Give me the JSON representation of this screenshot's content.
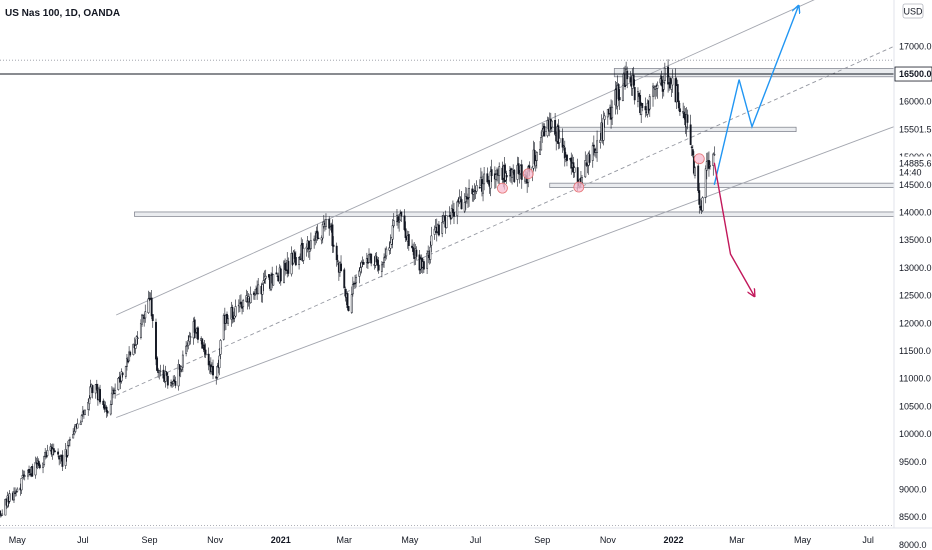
{
  "chart_data": {
    "type": "candlestick",
    "title": "US Nas 100, 1D, OANDA",
    "currency": "USD",
    "y_range": [
      7800,
      17800
    ],
    "y_ticks": [
      "8000.0",
      "8500.0",
      "9000.0",
      "9500.0",
      "10000.0",
      "10500.0",
      "11000.0",
      "11500.0",
      "12000.0",
      "12500.0",
      "13000.0",
      "13500.0",
      "14000.0",
      "14500.0",
      "15000.0",
      "16000.0",
      "17000.0"
    ],
    "x_ticks": [
      {
        "label": "May",
        "date": "2020-05-01",
        "bold": false
      },
      {
        "label": "Jul",
        "date": "2020-07-01",
        "bold": false
      },
      {
        "label": "Sep",
        "date": "2020-09-01",
        "bold": false
      },
      {
        "label": "Nov",
        "date": "2020-11-01",
        "bold": false
      },
      {
        "label": "2021",
        "date": "2021-01-01",
        "bold": true
      },
      {
        "label": "Mar",
        "date": "2021-03-01",
        "bold": false
      },
      {
        "label": "May",
        "date": "2021-05-01",
        "bold": false
      },
      {
        "label": "Jul",
        "date": "2021-07-01",
        "bold": false
      },
      {
        "label": "Sep",
        "date": "2021-09-01",
        "bold": false
      },
      {
        "label": "Nov",
        "date": "2021-11-01",
        "bold": false
      },
      {
        "label": "2022",
        "date": "2022-01-01",
        "bold": true
      },
      {
        "label": "Mar",
        "date": "2022-03-01",
        "bold": false
      },
      {
        "label": "May",
        "date": "2022-05-01",
        "bold": false
      },
      {
        "label": "Jul",
        "date": "2022-07-01",
        "bold": false
      }
    ],
    "date_range": [
      "2020-04-15",
      "2022-07-25"
    ],
    "price_path": [
      [
        "2020-04-15",
        8600
      ],
      [
        "2020-05-10",
        9250
      ],
      [
        "2020-06-05",
        9750
      ],
      [
        "2020-06-12",
        9500
      ],
      [
        "2020-07-10",
        10850
      ],
      [
        "2020-07-24",
        10500
      ],
      [
        "2020-08-10",
        11300
      ],
      [
        "2020-09-02",
        12400
      ],
      [
        "2020-09-08",
        11200
      ],
      [
        "2020-09-24",
        10900
      ],
      [
        "2020-10-12",
        12000
      ],
      [
        "2020-11-02",
        11000
      ],
      [
        "2020-11-09",
        12000
      ],
      [
        "2020-12-01",
        12500
      ],
      [
        "2020-12-31",
        12900
      ],
      [
        "2021-02-15",
        13800
      ],
      [
        "2021-03-05",
        12300
      ],
      [
        "2021-03-18",
        13200
      ],
      [
        "2021-04-06",
        13000
      ],
      [
        "2021-04-20",
        14000
      ],
      [
        "2021-05-12",
        13000
      ],
      [
        "2021-05-27",
        13700
      ],
      [
        "2021-06-25",
        14300
      ],
      [
        "2021-07-19",
        14700
      ],
      [
        "2021-08-18",
        14700
      ],
      [
        "2021-09-07",
        15650
      ],
      [
        "2021-09-20",
        15200
      ],
      [
        "2021-10-04",
        14500
      ],
      [
        "2021-10-25",
        15400
      ],
      [
        "2021-11-19",
        16550
      ],
      [
        "2021-12-03",
        15800
      ],
      [
        "2021-12-27",
        16500
      ],
      [
        "2022-01-12",
        15700
      ],
      [
        "2022-01-27",
        14000
      ],
      [
        "2022-02-02",
        14950
      ],
      [
        "2022-02-08",
        14885.6
      ]
    ],
    "channel": {
      "upper": {
        "from": [
          "2020-08-01",
          12150
        ],
        "to": [
          "2022-05-30",
          18000
        ]
      },
      "middle": {
        "from": [
          "2020-08-01",
          10700
        ],
        "to": [
          "2022-07-25",
          17000
        ]
      },
      "lower": {
        "from": [
          "2020-08-01",
          10300
        ],
        "to": [
          "2022-07-25",
          15550
        ]
      }
    },
    "horizontal_levels": [
      {
        "value": 16500,
        "label": "16500.0",
        "highlight": true
      },
      {
        "value": 15501.5,
        "label": "15501.5"
      },
      {
        "value": 14500,
        "label": "14500.0"
      },
      {
        "value": 13970,
        "label": ""
      }
    ],
    "zones": [
      {
        "from": "2021-11-07",
        "to": "2022-07-25",
        "low": 16450,
        "high": 16600
      },
      {
        "from": "2021-09-03",
        "to": "2022-04-25",
        "low": 15460,
        "high": 15540
      },
      {
        "from": "2021-09-08",
        "to": "2022-07-25",
        "low": 14450,
        "high": 14530
      },
      {
        "from": "2020-08-18",
        "to": "2022-07-25",
        "low": 13930,
        "high": 14010
      }
    ],
    "touch_points": [
      {
        "date": "2021-07-26",
        "value": 14440
      },
      {
        "date": "2021-08-19",
        "value": 14700
      },
      {
        "date": "2021-10-05",
        "value": 14460
      },
      {
        "date": "2022-01-25",
        "value": 14970
      }
    ],
    "projections": [
      {
        "color": "#2196f3",
        "points": [
          [
            "2022-02-08",
            14500
          ],
          [
            "2022-03-03",
            16400
          ],
          [
            "2022-03-15",
            15550
          ],
          [
            "2022-04-27",
            17720
          ]
        ]
      },
      {
        "color": "#c2185b",
        "points": [
          [
            "2022-02-08",
            14900
          ],
          [
            "2022-02-18",
            13800
          ],
          [
            "2022-02-23",
            13250
          ],
          [
            "2022-03-17",
            12500
          ]
        ]
      }
    ],
    "last_price": {
      "value": 14885.6,
      "label": "14885.6",
      "countdown": "14:40"
    },
    "top_level_label": {
      "value": 16500,
      "label": "16500.0"
    },
    "dotted_levels": [
      16750,
      8350
    ]
  }
}
